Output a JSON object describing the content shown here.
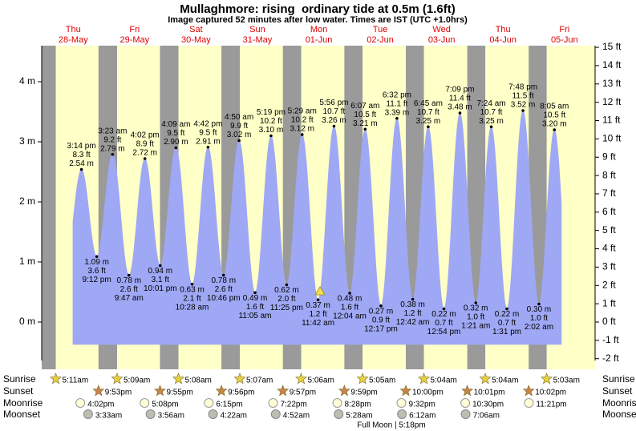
{
  "chart_data": {
    "type": "tide",
    "title": "Mullaghmore: rising  ordinary tide at 0.5m (1.6ft)",
    "subtitle": "Image captured 52 minutes after low water. Times are IST (UTC +1.0hrs)",
    "ylim": [
      -0.64,
      4.6
    ],
    "yticks": [
      {
        "value": 0,
        "label": "0 m"
      },
      {
        "value": 1,
        "label": "1 m"
      },
      {
        "value": 2,
        "label": "2 m"
      },
      {
        "value": 3,
        "label": "3 m"
      },
      {
        "value": 4,
        "label": "4 m"
      }
    ],
    "y2lim": [
      -2.1,
      15.09
    ],
    "y2ticks": [
      {
        "value": -2,
        "label": "-2 ft"
      },
      {
        "value": -1,
        "label": "-1 ft"
      },
      {
        "value": 0,
        "label": "0 ft"
      },
      {
        "value": 1,
        "label": "1 ft"
      },
      {
        "value": 2,
        "label": "2 ft"
      },
      {
        "value": 3,
        "label": "3 ft"
      },
      {
        "value": 4,
        "label": "4 ft"
      },
      {
        "value": 5,
        "label": "5 ft"
      },
      {
        "value": 6,
        "label": "6 ft"
      },
      {
        "value": 7,
        "label": "7 ft"
      },
      {
        "value": 8,
        "label": "8 ft"
      },
      {
        "value": 9,
        "label": "9 ft"
      },
      {
        "value": 10,
        "label": "10 ft"
      },
      {
        "value": 11,
        "label": "11 ft"
      },
      {
        "value": 12,
        "label": "12 ft"
      },
      {
        "value": 13,
        "label": "13 ft"
      },
      {
        "value": 14,
        "label": "14 ft"
      },
      {
        "value": 15,
        "label": "15 ft"
      }
    ],
    "row_labels": {
      "sunrise": "Sunrise",
      "sunset": "Sunset",
      "moonrise": "Moonrise",
      "moonset": "Moonset"
    },
    "moon_phase": "Full Moon | 5:18pm",
    "color": "#9fa8f4",
    "days": [
      {
        "weekday": "Thu",
        "date": "28-May",
        "sunrise": "5:11am",
        "sunset": "9:53pm",
        "moonrise": "4:02pm",
        "tides": {
          "times": [
            "3:14 pm",
            "9:12 pm"
          ],
          "values": [
            2.54,
            1.09
          ],
          "value_labels": [
            "2.54 m",
            "1.09 m"
          ],
          "ft_values": [
            8.3,
            3.6
          ],
          "ft_labels": [
            "8.3 ft",
            "3.6 ft"
          ]
        }
      },
      {
        "weekday": "Fri",
        "date": "29-May",
        "sunrise": "5:09am",
        "sunset": "9:55pm",
        "moonrise": "5:08pm",
        "moonset": "3:33am",
        "tides": {
          "times": [
            "3:23 am",
            "9:47 am",
            "4:02 pm",
            "10:01 pm"
          ],
          "values": [
            2.79,
            0.78,
            2.72,
            0.94
          ],
          "value_labels": [
            "2.79 m",
            "0.78 m",
            "2.72 m",
            "0.94 m"
          ],
          "ft_values": [
            9.2,
            2.6,
            8.9,
            3.1
          ],
          "ft_labels": [
            "9.2 ft",
            "2.6 ft",
            "8.9 ft",
            "3.1 ft"
          ]
        }
      },
      {
        "weekday": "Sat",
        "date": "30-May",
        "sunrise": "5:08am",
        "sunset": "9:56pm",
        "moonrise": "6:15pm",
        "moonset": "3:56am",
        "tides": {
          "times": [
            "4:09 am",
            "10:28 am",
            "4:42 pm",
            "10:46 pm"
          ],
          "values": [
            2.9,
            0.63,
            2.91,
            0.78
          ],
          "value_labels": [
            "2.90 m",
            "0.63 m",
            "2.91 m",
            "0.78 m"
          ],
          "ft_values": [
            9.5,
            2.1,
            9.5,
            2.6
          ],
          "ft_labels": [
            "9.5 ft",
            "2.1 ft",
            "9.5 ft",
            "2.6 ft"
          ]
        }
      },
      {
        "weekday": "Sun",
        "date": "31-May",
        "sunrise": "5:07am",
        "sunset": "9:57pm",
        "moonrise": "7:22pm",
        "moonset": "4:22am",
        "tides": {
          "times": [
            "4:50 am",
            "11:05 am",
            "5:19 pm",
            "11:25 pm"
          ],
          "values": [
            3.02,
            0.49,
            3.1,
            0.62
          ],
          "value_labels": [
            "3.02 m",
            "0.49 m",
            "3.10 m",
            "0.62 m"
          ],
          "ft_values": [
            9.9,
            1.6,
            10.2,
            2.0
          ],
          "ft_labels": [
            "9.9 ft",
            "1.6 ft",
            "10.2 ft",
            "2.0 ft"
          ]
        }
      },
      {
        "weekday": "Mon",
        "date": "01-Jun",
        "sunrise": "5:06am",
        "sunset": "9:59pm",
        "moonrise": "8:28pm",
        "moonset": "4:52am",
        "tides": {
          "times": [
            "5:29 am",
            "11:42 am",
            "5:56 pm"
          ],
          "values": [
            3.12,
            0.37,
            3.26
          ],
          "value_labels": [
            "3.12 m",
            "0.37 m",
            "3.26 m"
          ],
          "ft_values": [
            10.2,
            1.2,
            10.7
          ],
          "ft_labels": [
            "10.2 ft",
            "1.2 ft",
            "10.7 ft"
          ]
        }
      },
      {
        "weekday": "Tue",
        "date": "02-Jun",
        "sunrise": "5:05am",
        "sunset": "10:00pm",
        "moonrise": "9:32pm",
        "moonset": "5:28am",
        "tides": {
          "times": [
            "12:04 am",
            "6:07 am",
            "12:17 pm",
            "6:32 pm"
          ],
          "values": [
            0.48,
            3.21,
            0.27,
            3.39
          ],
          "value_labels": [
            "0.48 m",
            "3.21 m",
            "0.27 m",
            "3.39 m"
          ],
          "ft_values": [
            1.6,
            10.5,
            0.9,
            11.1
          ],
          "ft_labels": [
            "1.6 ft",
            "10.5 ft",
            "0.9 ft",
            "11.1 ft"
          ]
        }
      },
      {
        "weekday": "Wed",
        "date": "03-Jun",
        "sunrise": "5:04am",
        "sunset": "10:01pm",
        "moonrise": "10:30pm",
        "moonset": "6:12am",
        "tides": {
          "times": [
            "12:42 am",
            "6:45 am",
            "12:54 pm",
            "7:09 pm"
          ],
          "values": [
            0.38,
            3.25,
            0.22,
            3.48
          ],
          "value_labels": [
            "0.38 m",
            "3.25 m",
            "0.22 m",
            "3.48 m"
          ],
          "ft_values": [
            1.2,
            10.7,
            0.7,
            11.4
          ],
          "ft_labels": [
            "1.2 ft",
            "10.7 ft",
            "0.7 ft",
            "11.4 ft"
          ]
        }
      },
      {
        "weekday": "Thu",
        "date": "04-Jun",
        "sunrise": "5:04am",
        "sunset": "10:02pm",
        "moonrise": "11:21pm",
        "moonset": "7:06am",
        "tides": {
          "times": [
            "1:21 am",
            "7:24 am",
            "1:31 pm",
            "7:48 pm"
          ],
          "values": [
            0.32,
            3.25,
            0.22,
            3.52
          ],
          "value_labels": [
            "0.32 m",
            "3.25 m",
            "0.22 m",
            "3.52 m"
          ],
          "ft_values": [
            1.0,
            10.7,
            0.7,
            11.5
          ],
          "ft_labels": [
            "1.0 ft",
            "10.7 ft",
            "0.7 ft",
            "11.5 ft"
          ]
        }
      },
      {
        "weekday": "Fri",
        "date": "05-Jun",
        "sunrise": "5:03am",
        "tides": {
          "times": [
            "2:02 am",
            "8:05 am"
          ],
          "values": [
            0.3,
            3.2
          ],
          "value_labels": [
            "0.30 m",
            "3.20 m"
          ],
          "ft_values": [
            1.0,
            10.5
          ],
          "ft_labels": [
            "1.0 ft",
            "10.5 ft"
          ]
        }
      }
    ]
  }
}
